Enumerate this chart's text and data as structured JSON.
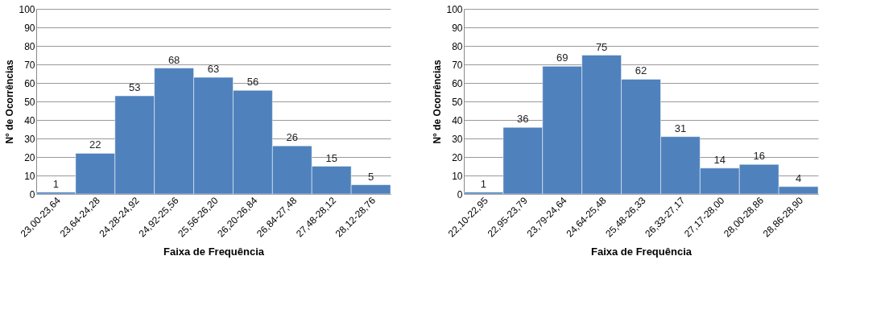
{
  "chart_data": [
    {
      "type": "bar",
      "xlabel": "Faixa de Frequência",
      "ylabel": "N° de Ocorrências",
      "categories": [
        "23,00-23,64",
        "23,64-24,28",
        "24,28-24,92",
        "24,92-25,56",
        "25,56-26,20",
        "26,20-26,84",
        "26,84-27,48",
        "27,48-28,12",
        "28,12-28,76"
      ],
      "values": [
        1,
        22,
        53,
        68,
        63,
        56,
        26,
        15,
        5
      ],
      "color": "#4f81bd",
      "ylim": [
        0,
        100
      ],
      "yticks": [
        0,
        10,
        20,
        30,
        40,
        50,
        60,
        70,
        80,
        90,
        100
      ],
      "grid": "y",
      "data_labels": true
    },
    {
      "type": "bar",
      "xlabel": "Faixa de Frequência",
      "ylabel": "N° de Ocorrências",
      "categories": [
        "22,10-22,95",
        "22,95-23,79",
        "23,79-24,64",
        "24,64-25,48",
        "25,48-26,33",
        "26,33-27,17",
        "27,17-28,00",
        "28,00-28,86",
        "28,86-28,90"
      ],
      "values": [
        1,
        36,
        69,
        75,
        62,
        31,
        14,
        16,
        4
      ],
      "color": "#4f81bd",
      "ylim": [
        0,
        100
      ],
      "yticks": [
        0,
        10,
        20,
        30,
        40,
        50,
        60,
        70,
        80,
        90,
        100
      ],
      "grid": "y",
      "data_labels": true
    }
  ]
}
